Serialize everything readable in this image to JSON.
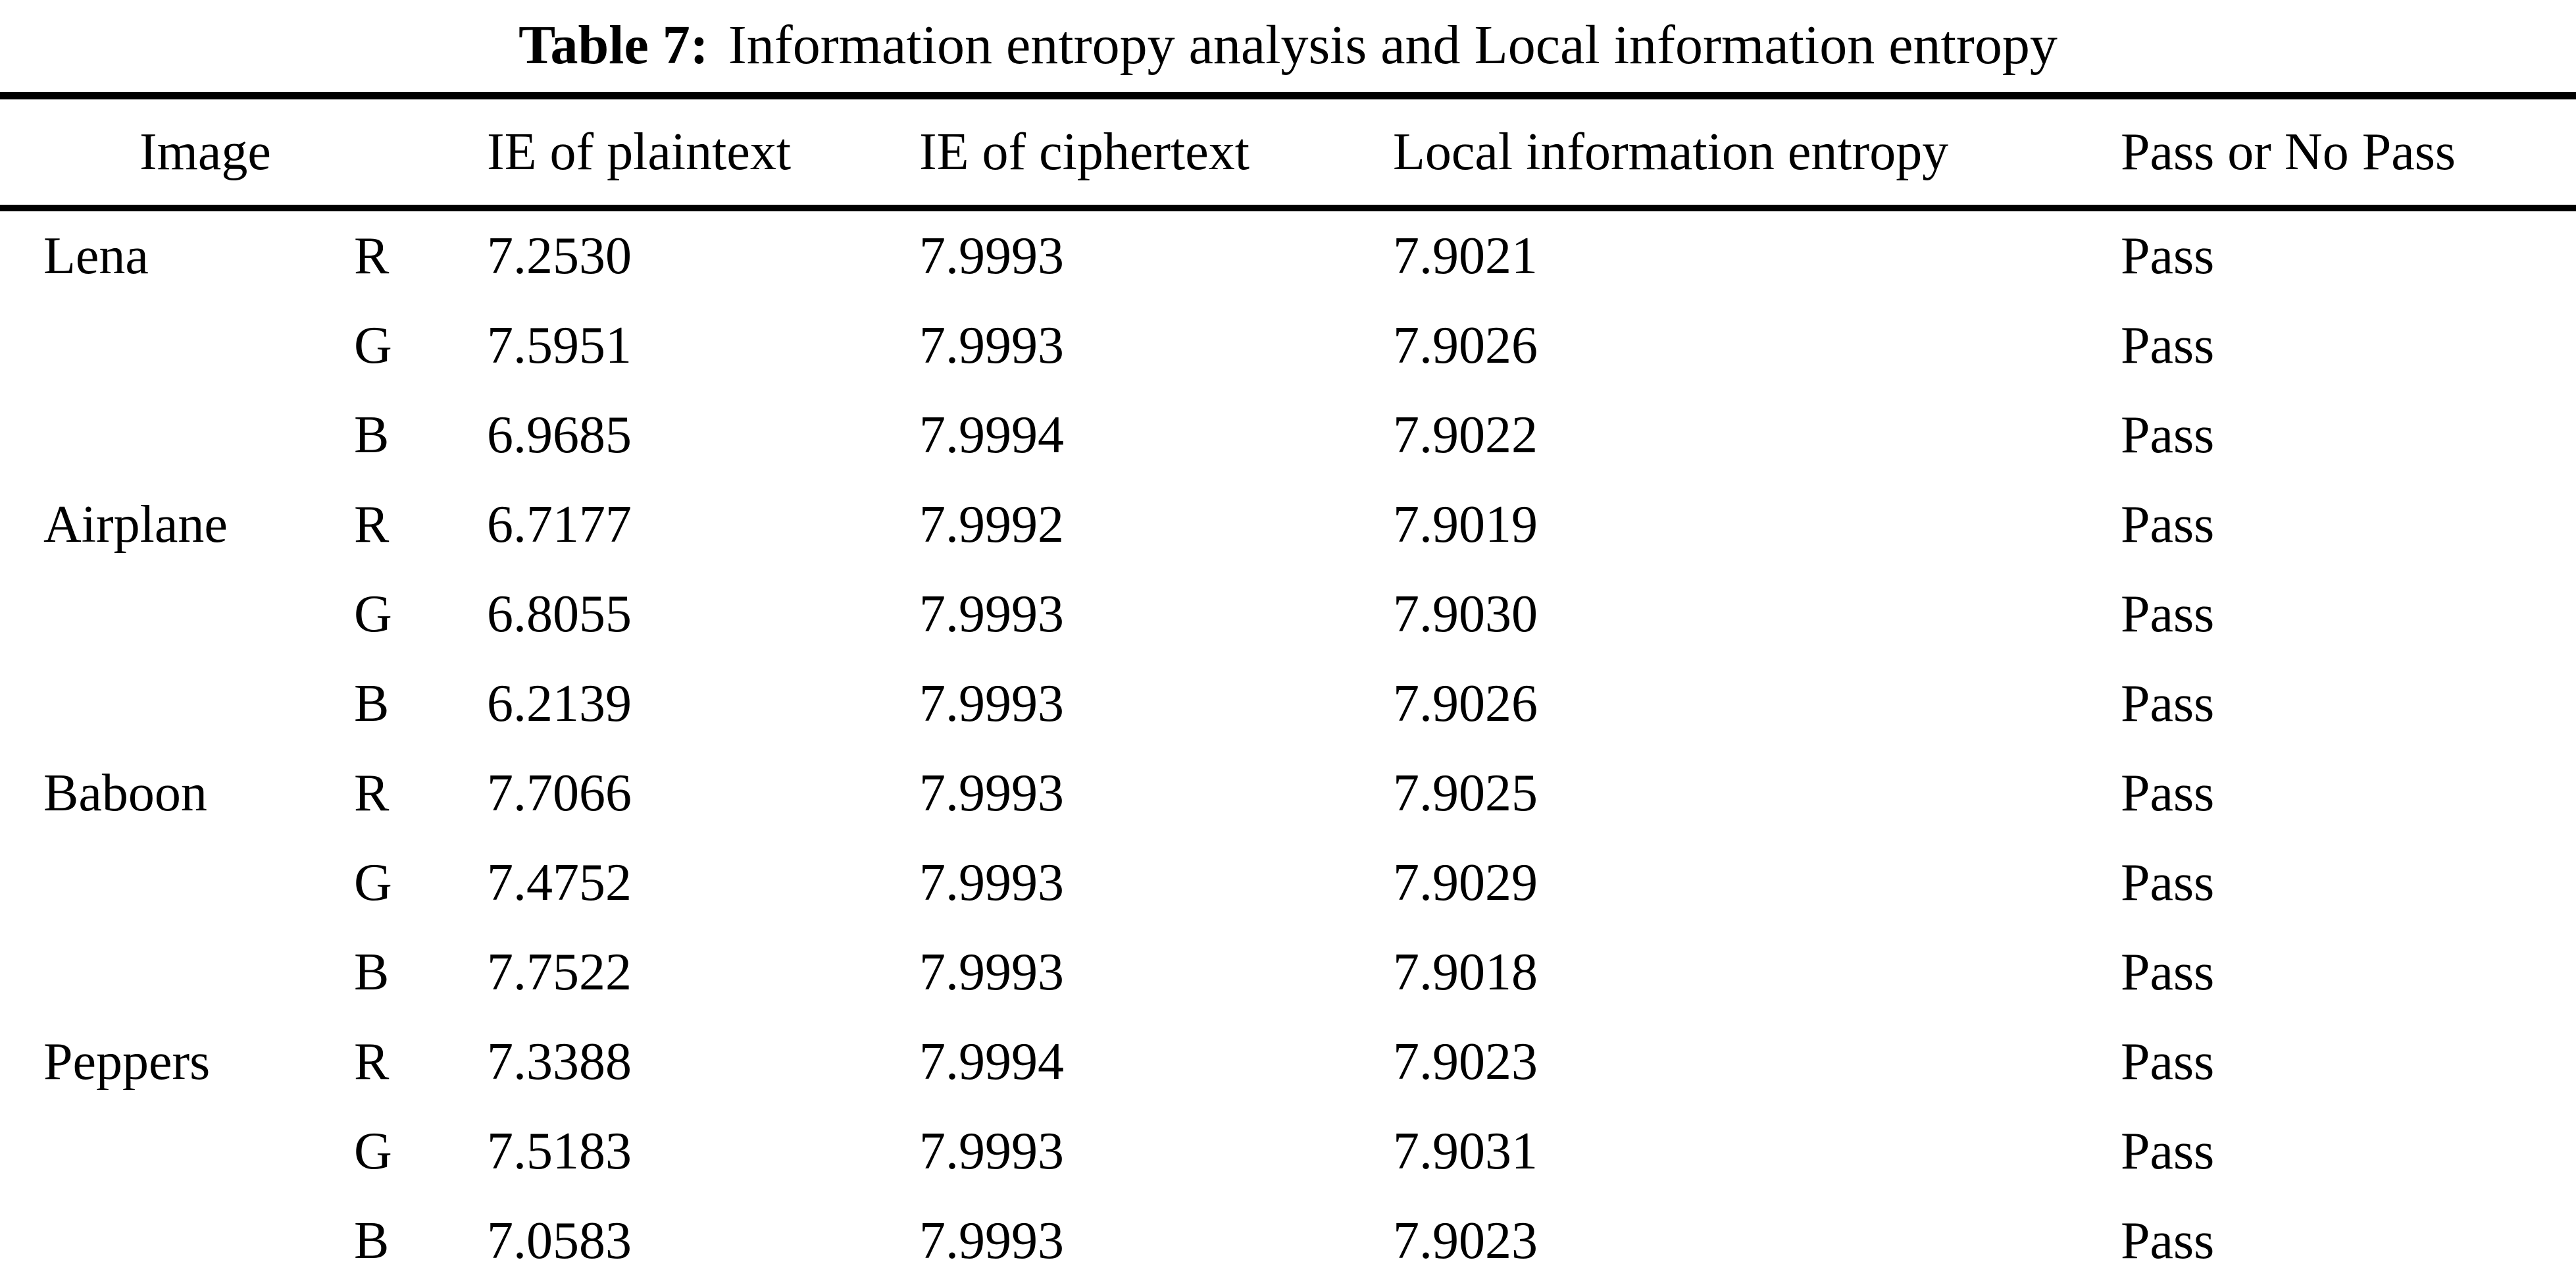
{
  "caption": {
    "label": "Table 7:",
    "text": "Information entropy analysis and Local information entropy"
  },
  "table": {
    "headers": {
      "image": "Image",
      "ie_plaintext": "IE of plaintext",
      "ie_ciphertext": "IE of ciphertext",
      "local_entropy": "Local information entropy",
      "pass": "Pass or No Pass"
    },
    "rows": [
      {
        "image": "Lena",
        "channel": "R",
        "ie_plaintext": "7.2530",
        "ie_ciphertext": "7.9993",
        "local_entropy": "7.9021",
        "pass": "Pass"
      },
      {
        "image": "",
        "channel": "G",
        "ie_plaintext": "7.5951",
        "ie_ciphertext": "7.9993",
        "local_entropy": "7.9026",
        "pass": "Pass"
      },
      {
        "image": "",
        "channel": "B",
        "ie_plaintext": "6.9685",
        "ie_ciphertext": "7.9994",
        "local_entropy": "7.9022",
        "pass": "Pass"
      },
      {
        "image": "Airplane",
        "channel": "R",
        "ie_plaintext": "6.7177",
        "ie_ciphertext": "7.9992",
        "local_entropy": "7.9019",
        "pass": "Pass"
      },
      {
        "image": "",
        "channel": "G",
        "ie_plaintext": "6.8055",
        "ie_ciphertext": "7.9993",
        "local_entropy": "7.9030",
        "pass": "Pass"
      },
      {
        "image": "",
        "channel": "B",
        "ie_plaintext": "6.2139",
        "ie_ciphertext": "7.9993",
        "local_entropy": "7.9026",
        "pass": "Pass"
      },
      {
        "image": "Baboon",
        "channel": "R",
        "ie_plaintext": "7.7066",
        "ie_ciphertext": "7.9993",
        "local_entropy": "7.9025",
        "pass": "Pass"
      },
      {
        "image": "",
        "channel": "G",
        "ie_plaintext": "7.4752",
        "ie_ciphertext": "7.9993",
        "local_entropy": "7.9029",
        "pass": "Pass"
      },
      {
        "image": "",
        "channel": "B",
        "ie_plaintext": "7.7522",
        "ie_ciphertext": "7.9993",
        "local_entropy": "7.9018",
        "pass": "Pass"
      },
      {
        "image": "Peppers",
        "channel": "R",
        "ie_plaintext": "7.3388",
        "ie_ciphertext": "7.9994",
        "local_entropy": "7.9023",
        "pass": "Pass"
      },
      {
        "image": "",
        "channel": "G",
        "ie_plaintext": "7.5183",
        "ie_ciphertext": "7.9993",
        "local_entropy": "7.9031",
        "pass": "Pass"
      },
      {
        "image": "",
        "channel": "B",
        "ie_plaintext": "7.0583",
        "ie_ciphertext": "7.9993",
        "local_entropy": "7.9023",
        "pass": "Pass"
      }
    ]
  },
  "colors": {
    "text": "#000000",
    "background": "#ffffff",
    "rule": "#000000"
  }
}
